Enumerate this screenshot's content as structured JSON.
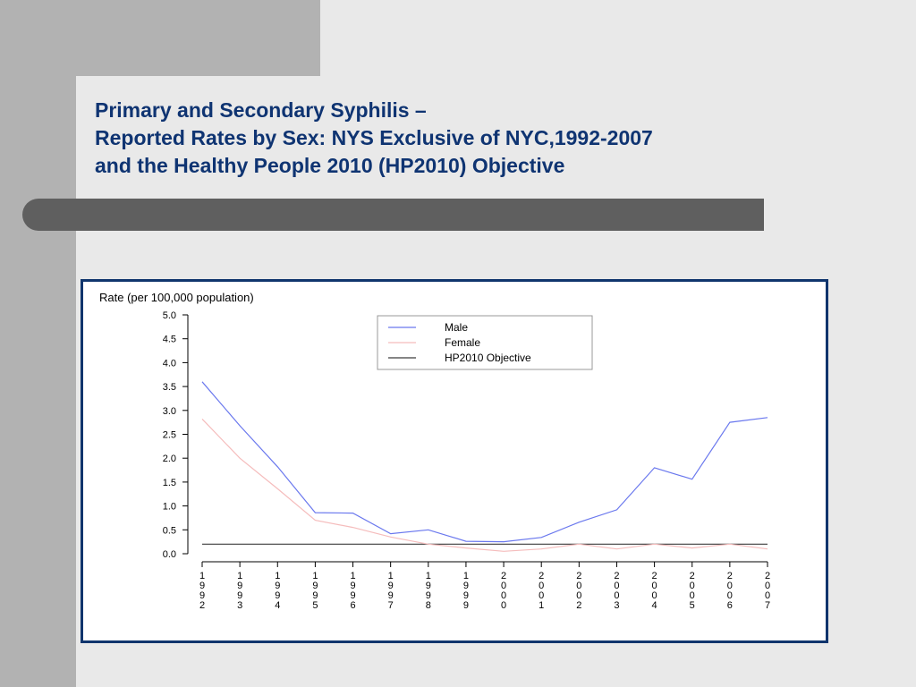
{
  "slide": {
    "title_lines": [
      "Primary and Secondary Syphilis –",
      "Reported Rates by Sex: NYS Exclusive of NYC,1992-2007",
      "and the Healthy People 2010 (HP2010) Objective"
    ]
  },
  "colors": {
    "title": "#0f3472",
    "frame": "#10356d",
    "male": "#6a78ee",
    "female": "#f5bcbc",
    "objective": "#3c3c3c"
  },
  "chart_data": {
    "type": "line",
    "title": "",
    "xlabel": "",
    "ylabel": "Rate (per 100,000 population)",
    "ylim": [
      0,
      5
    ],
    "y_ticks": [
      "0.0",
      "0.5",
      "1.0",
      "1.5",
      "2.0",
      "2.5",
      "3.0",
      "3.5",
      "4.0",
      "4.5",
      "5.0"
    ],
    "categories": [
      "1992",
      "1993",
      "1994",
      "1995",
      "1996",
      "1997",
      "1998",
      "1999",
      "2000",
      "2001",
      "2002",
      "2003",
      "2004",
      "2005",
      "2006",
      "2007"
    ],
    "series": [
      {
        "name": "Male",
        "color": "#6a78ee",
        "values": [
          3.6,
          2.68,
          1.82,
          0.86,
          0.85,
          0.42,
          0.5,
          0.26,
          0.25,
          0.34,
          0.66,
          0.92,
          1.8,
          1.56,
          2.75,
          2.85
        ]
      },
      {
        "name": "Female",
        "color": "#f5bcbc",
        "values": [
          2.82,
          2.0,
          1.36,
          0.7,
          0.55,
          0.35,
          0.2,
          0.12,
          0.05,
          0.1,
          0.2,
          0.1,
          0.2,
          0.12,
          0.2,
          0.1
        ]
      },
      {
        "name": "HP2010 Objective",
        "color": "#3c3c3c",
        "values": [
          0.2,
          0.2,
          0.2,
          0.2,
          0.2,
          0.2,
          0.2,
          0.2,
          0.2,
          0.2,
          0.2,
          0.2,
          0.2,
          0.2,
          0.2,
          0.2
        ]
      }
    ],
    "legend_position": "top-center",
    "grid": false
  }
}
